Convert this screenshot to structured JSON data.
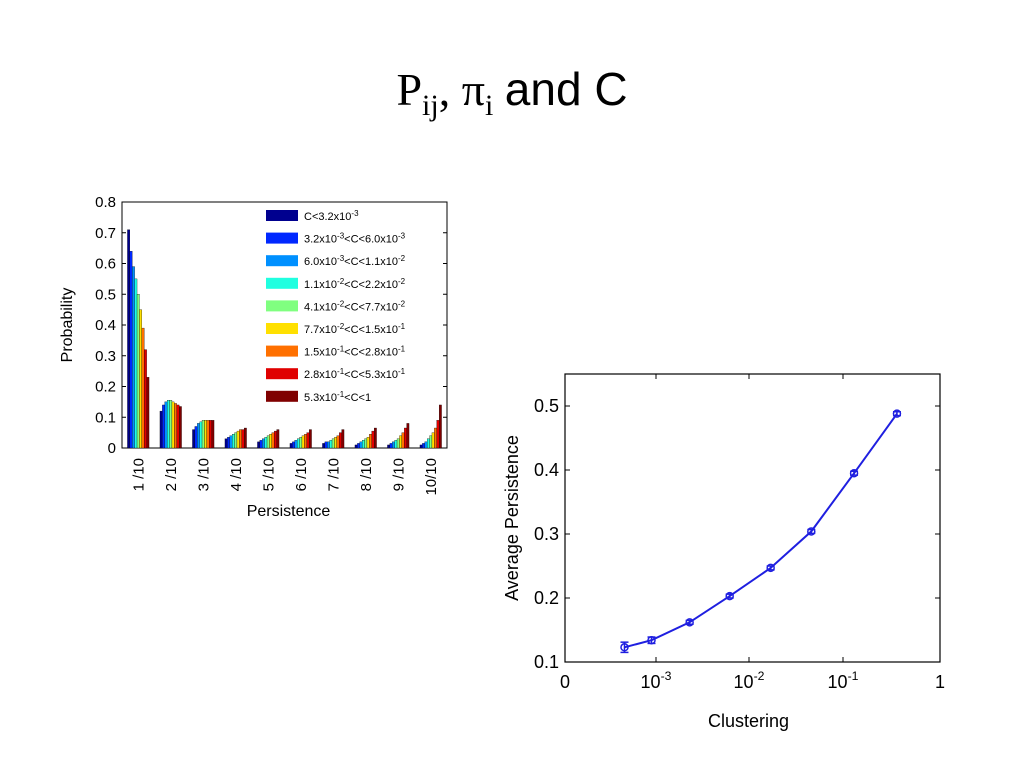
{
  "slide": {
    "title_p": "P",
    "title_p_sub": "ij",
    "title_sep": ",",
    "title_pi": "π",
    "title_pi_sub": "i",
    "title_rest": "and C"
  },
  "chart_data": [
    {
      "type": "bar",
      "title": "",
      "xlabel": "Persistence",
      "ylabel": "Probability",
      "ylim": [
        0,
        0.8
      ],
      "yticks": [
        "0",
        "0.1",
        "0.2",
        "0.3",
        "0.4",
        "0.5",
        "0.6",
        "0.7",
        "0.8"
      ],
      "grid": false,
      "legend_position": "top-right",
      "categories": [
        "1 /10",
        "2 /10",
        "3 /10",
        "4 /10",
        "5 /10",
        "6 /10",
        "7 /10",
        "8 /10",
        "9 /10",
        "10/10"
      ],
      "series": [
        {
          "name": "C<3.2x10",
          "exp": "-3",
          "color": "#00008f",
          "values": [
            0.71,
            0.12,
            0.06,
            0.03,
            0.02,
            0.015,
            0.015,
            0.01,
            0.01,
            0.01
          ]
        },
        {
          "name": "3.2x10<C<6.0x10",
          "exp": [
            "-3",
            "-3"
          ],
          "color": "#0028ff",
          "values": [
            0.64,
            0.14,
            0.07,
            0.035,
            0.025,
            0.02,
            0.02,
            0.015,
            0.015,
            0.015
          ]
        },
        {
          "name": "6.0x10<C<1.1x10",
          "exp": [
            "-3",
            "-2"
          ],
          "color": "#0090ff",
          "values": [
            0.59,
            0.15,
            0.08,
            0.04,
            0.03,
            0.025,
            0.02,
            0.02,
            0.02,
            0.02
          ]
        },
        {
          "name": "1.1x10<C<2.2x10",
          "exp": [
            "-2",
            "-2"
          ],
          "color": "#20ffe0",
          "values": [
            0.55,
            0.155,
            0.085,
            0.045,
            0.035,
            0.03,
            0.025,
            0.025,
            0.025,
            0.03
          ]
        },
        {
          "name": "4.1x10<C<7.7x10",
          "exp": [
            "-2",
            "-2"
          ],
          "color": "#80ff80",
          "values": [
            0.5,
            0.155,
            0.09,
            0.05,
            0.04,
            0.035,
            0.03,
            0.03,
            0.03,
            0.04
          ]
        },
        {
          "name": "7.7x10<C<1.5x10",
          "exp": [
            "-2",
            "-1"
          ],
          "color": "#ffe000",
          "values": [
            0.45,
            0.15,
            0.09,
            0.055,
            0.045,
            0.04,
            0.035,
            0.035,
            0.04,
            0.05
          ]
        },
        {
          "name": "1.5x10<C<2.8x10",
          "exp": [
            "-1",
            "-1"
          ],
          "color": "#ff7000",
          "values": [
            0.39,
            0.145,
            0.09,
            0.06,
            0.05,
            0.045,
            0.04,
            0.045,
            0.05,
            0.065
          ]
        },
        {
          "name": "2.8x10<C<5.3x10",
          "exp": [
            "-1",
            "-1"
          ],
          "color": "#e00000",
          "values": [
            0.32,
            0.14,
            0.09,
            0.06,
            0.055,
            0.05,
            0.05,
            0.055,
            0.065,
            0.09
          ]
        },
        {
          "name": "5.3x10<C<1",
          "exp": [
            "-1"
          ],
          "color": "#800000",
          "values": [
            0.23,
            0.135,
            0.09,
            0.065,
            0.06,
            0.06,
            0.06,
            0.065,
            0.08,
            0.14
          ]
        }
      ]
    },
    {
      "type": "line",
      "title": "",
      "xlabel": "Clustering",
      "ylabel": "Average Persistence",
      "xscale": "log-like (0 to 1)",
      "ylim": [
        0.1,
        0.55
      ],
      "yticks": [
        "0.1",
        "0.2",
        "0.3",
        "0.4",
        "0.5"
      ],
      "xticks": [
        {
          "base": "0",
          "exp": ""
        },
        {
          "base": "10",
          "exp": "-3"
        },
        {
          "base": "10",
          "exp": "-2"
        },
        {
          "base": "10",
          "exp": "-1"
        },
        {
          "base": "1",
          "exp": ""
        }
      ],
      "grid": false,
      "color": "#1f1fe0",
      "series": [
        {
          "x": [
            0.00032,
            0.00085,
            0.0023,
            0.0062,
            0.017,
            0.046,
            0.13,
            0.36
          ],
          "y": [
            0.123,
            0.134,
            0.162,
            0.203,
            0.247,
            0.304,
            0.395,
            0.488
          ],
          "yerr": [
            0.008,
            0.005,
            0.003,
            0.003,
            0.003,
            0.003,
            0.003,
            0.003
          ]
        }
      ]
    }
  ]
}
